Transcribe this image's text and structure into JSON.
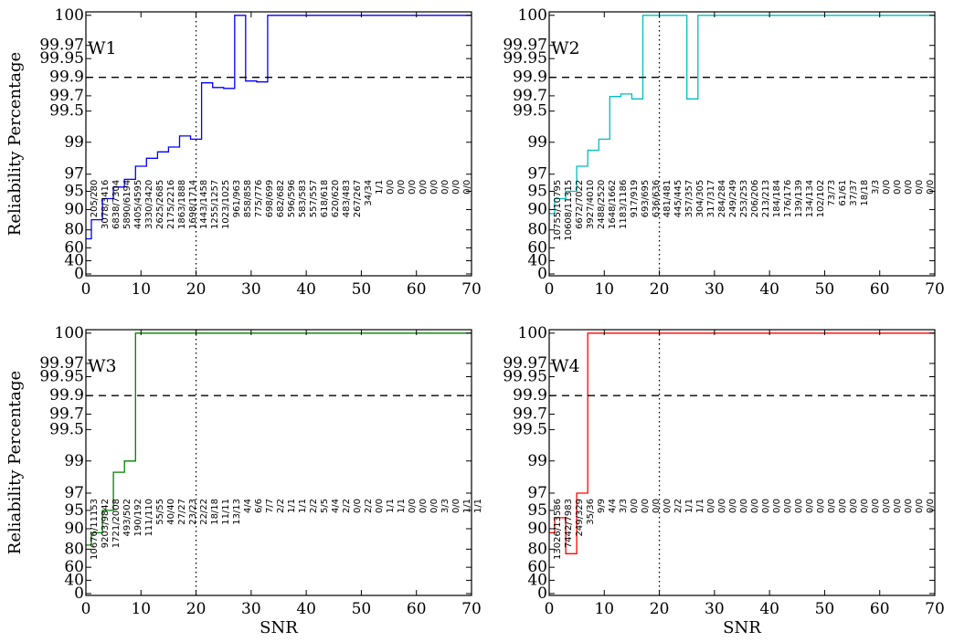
{
  "chart_data": [
    {
      "type": "line",
      "label": "W1",
      "color": "#0000ff",
      "xlim": [
        0,
        70
      ],
      "xticks": [
        0,
        10,
        20,
        30,
        40,
        50,
        60,
        70
      ],
      "ylabel": "Reliability Percentage",
      "xlabel": "",
      "yticks": [
        "0",
        "40",
        "60",
        "80",
        "90",
        "95",
        "97",
        "99",
        "99.5",
        "99.7",
        "99.9",
        "99.95",
        "99.97",
        "100"
      ],
      "reference_lines": {
        "horizontal_dashed": "99.9",
        "vertical_dotted": 20
      },
      "step_x": [
        0,
        1,
        1,
        3,
        3,
        5,
        5,
        7,
        7,
        9,
        9,
        11,
        11,
        13,
        13,
        15,
        15,
        17,
        17,
        19,
        19,
        21,
        21,
        23,
        23,
        25,
        25,
        27,
        27,
        29,
        29,
        31,
        31,
        33,
        33,
        70
      ],
      "step_y": [
        70,
        70,
        85,
        85,
        93,
        93,
        95.5,
        95.5,
        96.4,
        96.4,
        97.5,
        97.5,
        98,
        98,
        98.4,
        98.4,
        98.7,
        98.7,
        99.1,
        99.1,
        99.05,
        99.05,
        99.84,
        99.84,
        99.79,
        99.79,
        99.78,
        99.78,
        100,
        100,
        99.86,
        99.86,
        99.85,
        99.85,
        100,
        100
      ],
      "annotations": [
        "205/280",
        "3078/3416",
        "6838/7304",
        "5890/6194",
        "4405/4595",
        "3330/3420",
        "2625/2685",
        "2175/2216",
        "1863/1888",
        "1698/1714",
        "1443/1458",
        "1255/1257",
        "1023/1025",
        "961/963",
        "858/858",
        "775/776",
        "698/699",
        "682/682",
        "596/596",
        "583/583",
        "557/557",
        "618/618",
        "620/620",
        "483/483",
        "267/267",
        "34/34",
        "1/1",
        "0/0",
        "0/0",
        "0/0",
        "0/0",
        "0/0",
        "0/0",
        "0/0",
        "0/0"
      ]
    },
    {
      "type": "line",
      "label": "W2",
      "color": "#00bfbf",
      "xlim": [
        0,
        70
      ],
      "xticks": [
        0,
        10,
        20,
        30,
        40,
        50,
        60,
        70
      ],
      "ylabel": "",
      "xlabel": "",
      "yticks": [
        "0",
        "40",
        "60",
        "80",
        "90",
        "95",
        "97",
        "99",
        "99.5",
        "99.7",
        "99.9",
        "99.95",
        "99.97",
        "100"
      ],
      "reference_lines": {
        "horizontal_dashed": "99.9",
        "vertical_dotted": 20
      },
      "step_x": [
        0,
        1,
        1,
        3,
        3,
        5,
        5,
        7,
        7,
        9,
        9,
        11,
        11,
        13,
        13,
        15,
        15,
        17,
        17,
        19,
        19,
        21,
        21,
        23,
        23,
        25,
        25,
        27,
        27,
        70
      ],
      "step_y": [
        88,
        88,
        93,
        93,
        95,
        95,
        97.5,
        97.5,
        98.5,
        98.5,
        99.05,
        99.05,
        99.69,
        99.69,
        99.72,
        99.72,
        99.66,
        99.66,
        100,
        100,
        100,
        100,
        100,
        100,
        100,
        100,
        99.66,
        99.66,
        100,
        100
      ],
      "annotations": [
        "10755/10795",
        "10608/11315",
        "6672/7022",
        "3927/4010",
        "2488/2520",
        "1648/1662",
        "1183/1186",
        "917/919",
        "693/695",
        "636/636",
        "481/481",
        "445/445",
        "357/357",
        "304/305",
        "317/317",
        "284/284",
        "249/249",
        "253/253",
        "206/206",
        "213/213",
        "184/184",
        "176/176",
        "139/139",
        "134/134",
        "102/102",
        "73/73",
        "61/61",
        "37/37",
        "18/18",
        "3/3",
        "0/0",
        "0/0",
        "0/0",
        "0/0",
        "0/0"
      ]
    },
    {
      "type": "line",
      "label": "W3",
      "color": "#008000",
      "xlim": [
        0,
        70
      ],
      "xticks": [
        0,
        10,
        20,
        30,
        40,
        50,
        60,
        70
      ],
      "ylabel": "Reliability Percentage",
      "xlabel": "SNR",
      "yticks": [
        "0",
        "40",
        "60",
        "80",
        "90",
        "95",
        "97",
        "99",
        "99.5",
        "99.7",
        "99.9",
        "99.95",
        "99.97",
        "100"
      ],
      "reference_lines": {
        "horizontal_dashed": "99.9",
        "vertical_dotted": 20
      },
      "step_x": [
        0,
        1,
        1,
        3,
        3,
        5,
        5,
        7,
        7,
        9,
        9,
        70
      ],
      "step_y": [
        82,
        82,
        88,
        88,
        95,
        95,
        98.3,
        98.3,
        99,
        99,
        100,
        100
      ],
      "annotations": [
        "10676/11153",
        "9203/9842",
        "1721/2008",
        "493/502",
        "190/192",
        "111/110",
        "55/55",
        "40/40",
        "27/27",
        "23/23",
        "22/22",
        "18/18",
        "11/11",
        "13/13",
        "4/4",
        "6/6",
        "7/7",
        "2/2",
        "1/1",
        "1/1",
        "2/2",
        "5/5",
        "4/4",
        "2/2",
        "0/0",
        "2/2",
        "0/0",
        "1/1",
        "1/1",
        "0/0",
        "0/0",
        "0/0",
        "3/3",
        "0/0",
        "1/1",
        "1/1"
      ]
    },
    {
      "type": "line",
      "label": "W4",
      "color": "#ff0000",
      "xlim": [
        0,
        70
      ],
      "xticks": [
        0,
        10,
        20,
        30,
        40,
        50,
        60,
        70
      ],
      "ylabel": "",
      "xlabel": "SNR",
      "yticks": [
        "0",
        "40",
        "60",
        "80",
        "90",
        "95",
        "97",
        "99",
        "99.5",
        "99.7",
        "99.9",
        "99.95",
        "99.97",
        "100"
      ],
      "reference_lines": {
        "horizontal_dashed": "99.9",
        "vertical_dotted": 20
      },
      "step_x": [
        0,
        1,
        1,
        3,
        3,
        5,
        5,
        7,
        7,
        70
      ],
      "step_y": [
        88,
        88,
        93,
        93,
        75,
        75,
        97,
        97,
        100,
        100
      ],
      "annotations": [
        "13026/13586",
        "7442/7983",
        "249/329",
        "35/36",
        "9/9",
        "4/4",
        "3/3",
        "0/0",
        "0/0",
        "0/0",
        "0/0",
        "2/2",
        "1/1",
        "1/1",
        "0/0",
        "0/0",
        "0/0",
        "0/0",
        "0/0",
        "0/0",
        "0/0",
        "0/0",
        "0/0",
        "0/0",
        "0/0",
        "0/0",
        "0/0",
        "0/0",
        "0/0",
        "0/0",
        "0/0",
        "0/0",
        "0/0",
        "0/0",
        "0/0"
      ]
    }
  ]
}
